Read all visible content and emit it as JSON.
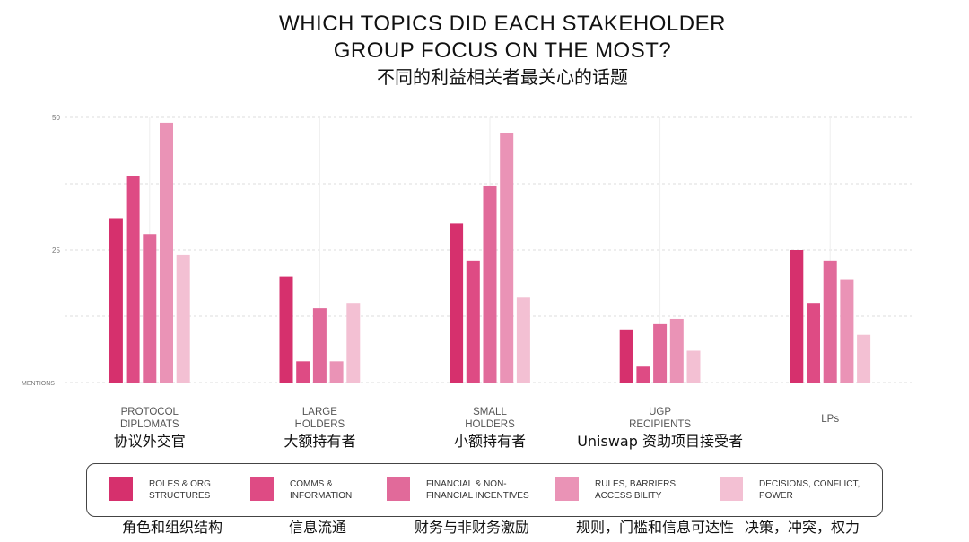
{
  "title": {
    "line1": "WHICH TOPICS DID EACH STAKEHOLDER",
    "line2": "GROUP FOCUS ON THE MOST?",
    "subtitle_zh": "不同的利益相关者最关心的话题"
  },
  "colors": {
    "roles": "#d6306d",
    "comms": "#de4b84",
    "financial": "#e16a9a",
    "rules": "#ea93b6",
    "decisions": "#f3c0d3",
    "grid": "#dddddd",
    "tick": "#777777"
  },
  "chart_data": {
    "type": "bar",
    "ylabel": "MENTIONS",
    "ylim": [
      0,
      50
    ],
    "yticks": [
      "25",
      "50"
    ],
    "grid": true,
    "legend_position": "bottom",
    "categories": [
      {
        "label": "PROTOCOL\nDIPLOMATS",
        "label_zh": "协议外交官"
      },
      {
        "label": "LARGE\nHOLDERS",
        "label_zh": "大额持有者"
      },
      {
        "label": "SMALL\nHOLDERS",
        "label_zh": "小额持有者"
      },
      {
        "label": "UGP\nRECIPIENTS",
        "label_zh": "Uniswap 资助项目接受者"
      },
      {
        "label": "LPs",
        "label_zh": ""
      }
    ],
    "series": [
      {
        "name": "ROLES & ORG\nSTRUCTURES",
        "name_zh": "角色和组织结构",
        "color_key": "roles",
        "values": [
          31,
          20,
          30,
          10,
          25
        ]
      },
      {
        "name": "COMMS &\nINFORMATION",
        "name_zh": "信息流通",
        "color_key": "comms",
        "values": [
          39,
          4,
          23,
          3,
          15
        ]
      },
      {
        "name": "FINANCIAL & NON-\nFINANCIAL INCENTIVES",
        "name_zh": "财务与非财务激励",
        "color_key": "financial",
        "values": [
          28,
          14,
          37,
          11,
          23
        ]
      },
      {
        "name": "RULES, BARRIERS,\nACCESSIBILITY",
        "name_zh": "规则，门槛和信息可达性",
        "color_key": "rules",
        "values": [
          49,
          4,
          47,
          12,
          19.5
        ]
      },
      {
        "name": "DECISIONS, CONFLICT,\nPOWER",
        "name_zh": "决策，冲突，权力",
        "color_key": "decisions",
        "values": [
          24,
          15,
          16,
          6,
          9
        ]
      }
    ]
  }
}
